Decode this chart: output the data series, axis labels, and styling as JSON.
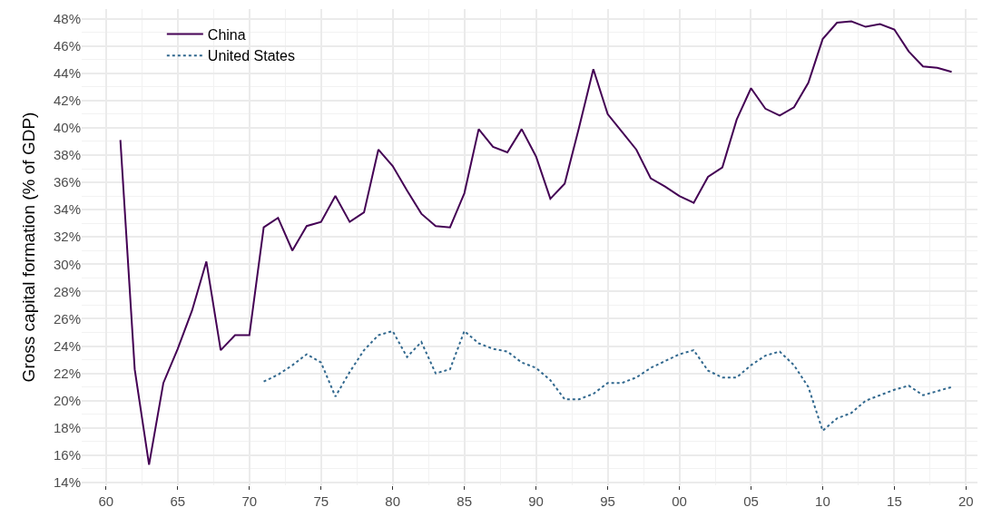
{
  "chart_data": {
    "type": "line",
    "ylabel": "Gross capital formation (% of GDP)",
    "x": [
      1961,
      1962,
      1963,
      1964,
      1965,
      1966,
      1967,
      1968,
      1969,
      1970,
      1971,
      1972,
      1973,
      1974,
      1975,
      1976,
      1977,
      1978,
      1979,
      1980,
      1981,
      1982,
      1983,
      1984,
      1985,
      1986,
      1987,
      1988,
      1989,
      1990,
      1991,
      1992,
      1993,
      1994,
      1995,
      1996,
      1997,
      1998,
      1999,
      2000,
      2001,
      2002,
      2003,
      2004,
      2005,
      2006,
      2007,
      2008,
      2009,
      2010,
      2011,
      2012,
      2013,
      2014,
      2015,
      2016,
      2017,
      2018,
      2019
    ],
    "series": [
      {
        "name": "China",
        "color": "#440154",
        "line_style": "solid",
        "values": [
          39.1,
          22.3,
          15.3,
          21.3,
          23.8,
          26.6,
          30.2,
          23.7,
          24.8,
          24.8,
          32.7,
          33.4,
          31.0,
          32.8,
          33.1,
          35.0,
          33.1,
          33.8,
          38.4,
          37.2,
          35.4,
          33.7,
          32.8,
          32.7,
          35.2,
          39.9,
          38.6,
          38.2,
          39.9,
          37.9,
          34.8,
          35.9,
          40.0,
          44.3,
          41.0,
          39.7,
          38.4,
          36.3,
          35.7,
          35.0,
          34.5,
          36.4,
          37.1,
          40.6,
          42.9,
          41.4,
          40.9,
          41.5,
          43.3,
          46.5,
          47.7,
          47.8,
          47.4,
          47.6,
          47.2,
          45.6,
          44.5,
          44.4,
          44.1
        ]
      },
      {
        "name": "United States",
        "color": "#31688e",
        "line_style": "dotted",
        "values": [
          null,
          null,
          null,
          null,
          null,
          null,
          null,
          null,
          null,
          null,
          21.4,
          21.9,
          22.6,
          23.4,
          22.8,
          20.3,
          22.1,
          23.7,
          24.8,
          25.1,
          23.2,
          24.3,
          22.0,
          22.3,
          25.1,
          24.2,
          23.8,
          23.6,
          22.8,
          22.4,
          21.5,
          20.1,
          20.1,
          20.5,
          21.3,
          21.3,
          21.7,
          22.4,
          22.9,
          23.4,
          23.7,
          22.2,
          21.7,
          21.7,
          22.6,
          23.3,
          23.6,
          22.6,
          21.0,
          17.8,
          18.7,
          19.1,
          20.0,
          20.4,
          20.8,
          21.1,
          20.4,
          20.7,
          21.0
        ]
      }
    ],
    "xlim": [
      1958.3,
      2020.8
    ],
    "xticks": [
      {
        "value": 1960,
        "label": "60"
      },
      {
        "value": 1965,
        "label": "65"
      },
      {
        "value": 1970,
        "label": "70"
      },
      {
        "value": 1975,
        "label": "75"
      },
      {
        "value": 1980,
        "label": "80"
      },
      {
        "value": 1985,
        "label": "85"
      },
      {
        "value": 1990,
        "label": "90"
      },
      {
        "value": 1995,
        "label": "95"
      },
      {
        "value": 2000,
        "label": "00"
      },
      {
        "value": 2005,
        "label": "05"
      },
      {
        "value": 2010,
        "label": "10"
      },
      {
        "value": 2015,
        "label": "15"
      },
      {
        "value": 2020,
        "label": "20"
      }
    ],
    "ylim": [
      13.8,
      48.7
    ],
    "yticks": [
      {
        "value": 14,
        "label": "14%"
      },
      {
        "value": 16,
        "label": "16%"
      },
      {
        "value": 18,
        "label": "18%"
      },
      {
        "value": 20,
        "label": "20%"
      },
      {
        "value": 22,
        "label": "22%"
      },
      {
        "value": 24,
        "label": "24%"
      },
      {
        "value": 26,
        "label": "26%"
      },
      {
        "value": 28,
        "label": "28%"
      },
      {
        "value": 30,
        "label": "30%"
      },
      {
        "value": 32,
        "label": "32%"
      },
      {
        "value": 34,
        "label": "34%"
      },
      {
        "value": 36,
        "label": "36%"
      },
      {
        "value": 38,
        "label": "38%"
      },
      {
        "value": 40,
        "label": "40%"
      },
      {
        "value": 42,
        "label": "42%"
      },
      {
        "value": 44,
        "label": "44%"
      },
      {
        "value": 46,
        "label": "46%"
      },
      {
        "value": 48,
        "label": "48%"
      }
    ],
    "grid": true,
    "legend": "top left"
  }
}
